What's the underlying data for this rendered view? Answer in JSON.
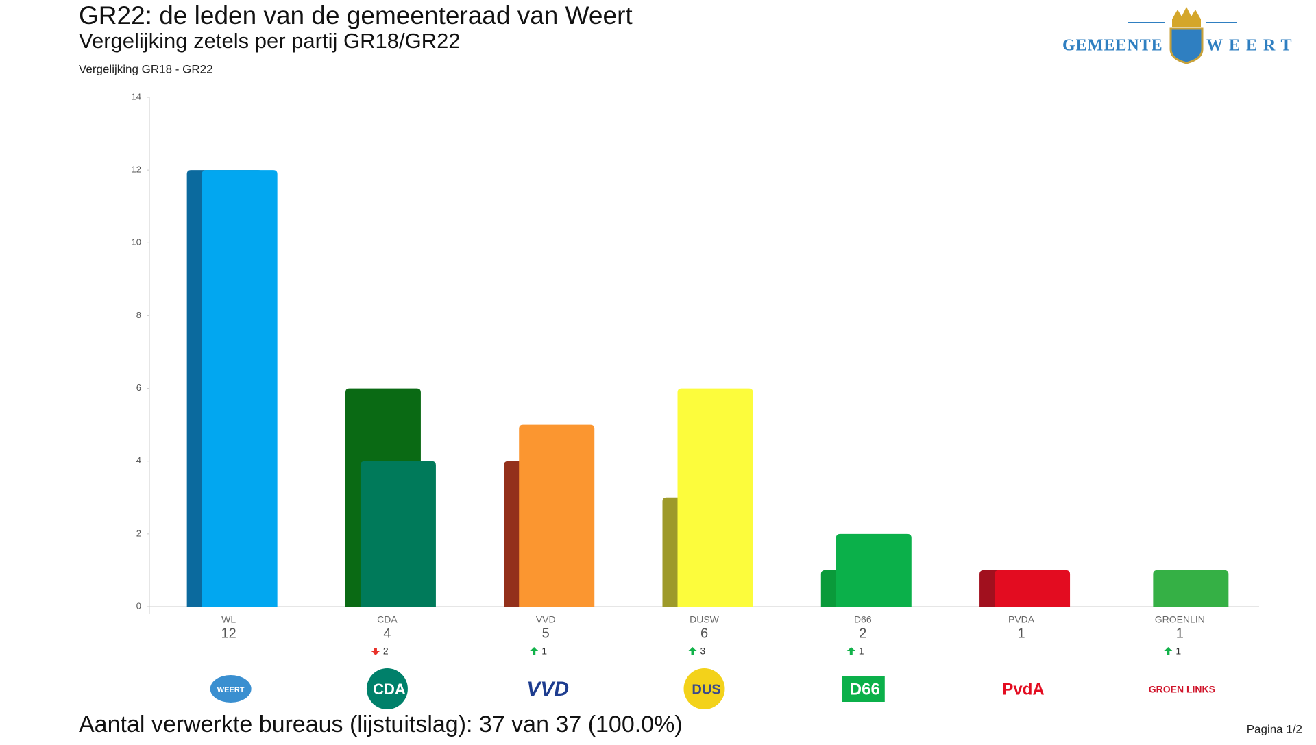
{
  "header": {
    "logo_left": "GEMEENTE",
    "logo_right": "WEERT"
  },
  "chart_data": {
    "type": "bar",
    "title": "GR22: de leden van de gemeenteraad van Weert",
    "subtitle": "Vergelijking zetels per partij GR18/GR22",
    "chart_label": "Vergelijking GR18 - GR22",
    "categories": [
      "WL",
      "CDA",
      "VVD",
      "DUSW",
      "D66",
      "PVDA",
      "GROENLIN"
    ],
    "series": [
      {
        "name": "GR18",
        "values": [
          12,
          6,
          4,
          3,
          1,
          1,
          0
        ],
        "colors": [
          "#0b6a9e",
          "#0a6a14",
          "#93301b",
          "#9e9a2a",
          "#0a9a3a",
          "#a1101e",
          "#2a9a3a"
        ]
      },
      {
        "name": "GR22",
        "values": [
          12,
          4,
          5,
          6,
          2,
          1,
          1
        ],
        "colors": [
          "#02a7f0",
          "#007a5a",
          "#fb9630",
          "#fcfc3c",
          "#0bb04a",
          "#e30c20",
          "#35b045"
        ]
      }
    ],
    "changes": [
      null,
      2,
      1,
      3,
      1,
      null,
      1
    ],
    "change_directions": [
      null,
      "down",
      "up",
      "up",
      "up",
      null,
      "up"
    ],
    "logos": [
      "WEERT",
      "CDA",
      "VVD",
      "DUS",
      "D66",
      "PvdA",
      "GROEN LINKS"
    ],
    "ylim": [
      0,
      14
    ],
    "yticks": [
      0,
      2,
      4,
      6,
      8,
      10,
      12,
      14
    ],
    "footer": "Aantal verwerkte bureaus (lijstuitslag): 37 van 37 (100.0%)",
    "page": "Pagina 1/2"
  }
}
